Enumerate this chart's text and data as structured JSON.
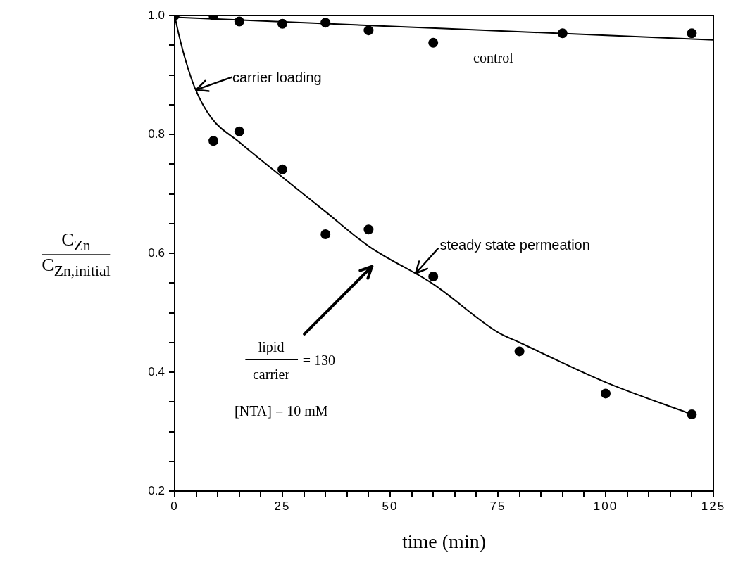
{
  "chart_data": {
    "type": "scatter",
    "xlabel": "time (min)",
    "ylabel": "C$_{Zn}$ C$_{Zn,initial}$",
    "xlim": [
      0,
      125
    ],
    "xticks": [
      0,
      {
        "value": 5,
        "label": null
      },
      {
        "value": 10,
        "label": null
      },
      {
        "value": 15,
        "label": null
      },
      {
        "value": 20,
        "label": null
      },
      25,
      {
        "value": 30,
        "label": null
      },
      {
        "value": 35,
        "label": null
      },
      {
        "value": 40,
        "label": null
      },
      {
        "value": 45,
        "label": null
      },
      50,
      {
        "value": 55,
        "label": null
      },
      {
        "value": 60,
        "label": null
      },
      {
        "value": 65,
        "label": null
      },
      {
        "value": 70,
        "label": null
      },
      75,
      {
        "value": 80,
        "label": null
      },
      {
        "value": 85,
        "label": null
      },
      {
        "value": 90,
        "label": null
      },
      {
        "value": 95,
        "label": null
      },
      100,
      {
        "value": 105,
        "label": null
      },
      {
        "value": 110,
        "label": null
      },
      {
        "value": 115,
        "label": null
      },
      {
        "value": 120,
        "label": null
      },
      125
    ],
    "ylim": [
      0.2,
      1.0
    ],
    "yticks": [
      {
        "value": 0.2,
        "label": "0.2"
      },
      {
        "value": 0.25,
        "label": null
      },
      {
        "value": 0.3,
        "label": null
      },
      {
        "value": 0.35,
        "label": null
      },
      {
        "value": 0.4,
        "label": "0.4"
      },
      {
        "value": 0.45,
        "label": null
      },
      {
        "value": 0.5,
        "label": null
      },
      {
        "value": 0.55,
        "label": null
      },
      {
        "value": 0.6,
        "label": "0.6"
      },
      {
        "value": 0.65,
        "label": null
      },
      {
        "value": 0.7,
        "label": null
      },
      {
        "value": 0.75,
        "label": null
      },
      {
        "value": 0.8,
        "label": "0.8"
      },
      {
        "value": 0.85,
        "label": null
      },
      {
        "value": 0.9,
        "label": null
      },
      {
        "value": 0.95,
        "label": null
      },
      {
        "value": 1.0,
        "label": "1.0"
      }
    ],
    "marker": "circle",
    "series": [
      {
        "type": "scatter",
        "color": "#000000",
        "x": [
          0,
          9,
          15,
          25,
          35,
          45,
          60,
          90,
          120
        ],
        "values": [
          1.0,
          1.0,
          0.99,
          0.986,
          0.988,
          0.975,
          0.954,
          0.97,
          0.97
        ]
      },
      {
        "type": "line",
        "marker": "none",
        "color": "#000000",
        "x": [
          0,
          125
        ],
        "values": [
          0.997,
          0.959
        ]
      },
      {
        "type": "scatter",
        "color": "#000000",
        "x": [
          9,
          15,
          25,
          35,
          45,
          60,
          80,
          100,
          120
        ],
        "values": [
          0.789,
          0.805,
          0.741,
          0.632,
          0.64,
          0.561,
          0.435,
          0.364,
          0.329
        ]
      },
      {
        "type": "line",
        "marker": "none",
        "color": "#000000",
        "x": [
          0,
          1,
          2.6,
          4.7,
          8.5,
          15,
          25,
          35,
          45,
          60,
          75,
          80,
          100,
          120
        ],
        "values": [
          1.0,
          0.967,
          0.923,
          0.878,
          0.828,
          0.787,
          0.728,
          0.67,
          0.612,
          0.548,
          0.467,
          0.45,
          0.383,
          0.329
        ]
      }
    ],
    "annotations": [
      {
        "text": "carrier loading",
        "x": 5.0,
        "y": 0.875
      },
      "control",
      {
        "text": "steady state permeation",
        "x": 55.9,
        "y": 0.566
      },
      "lipid",
      "carrier",
      "= 130",
      "[NTA] = 10 mM"
    ]
  }
}
